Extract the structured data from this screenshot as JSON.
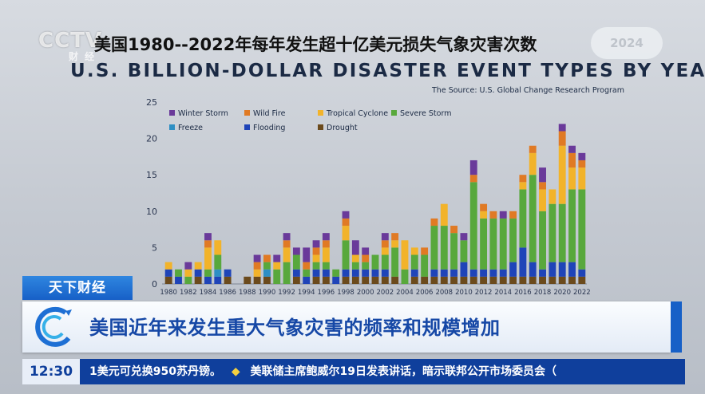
{
  "broadcast": {
    "logo_text": "CCTV",
    "channel_text": "财经",
    "pill_text": "2024",
    "section_label": "天下财经",
    "headline": "美国近年来发生重大气象灾害的频率和规模增加",
    "clock": "12:30",
    "ticker_items": [
      "1美元可兑换950苏丹镑。",
      "美联储主席鲍威尔19日发表讲话，暗示联邦公开市场委员会（"
    ]
  },
  "chart_data": {
    "type": "bar",
    "stacked": true,
    "title_cn": "美国1980--2022年每年发生超十亿美元损失气象灾害次数",
    "title": "U.S. BILLION-DOLLAR DISASTER EVENT TYPES BY YEAR",
    "source": "The Source: U.S. Global Change Research Program",
    "ylim": [
      0,
      25
    ],
    "yticks": [
      "0",
      "5",
      "10",
      "15",
      "20",
      "25"
    ],
    "xticks": [
      "1980",
      "1982",
      "1984",
      "1986",
      "1988",
      "1990",
      "1992",
      "1994",
      "1996",
      "1998",
      "2000",
      "2002",
      "2004",
      "2006",
      "2008",
      "2010",
      "2012",
      "2014",
      "2016",
      "2018",
      "2020",
      "2022"
    ],
    "categories": [
      "1980",
      "1981",
      "1982",
      "1983",
      "1984",
      "1985",
      "1986",
      "1987",
      "1988",
      "1989",
      "1990",
      "1991",
      "1992",
      "1993",
      "1994",
      "1995",
      "1996",
      "1997",
      "1998",
      "1999",
      "2000",
      "2001",
      "2002",
      "2003",
      "2004",
      "2005",
      "2006",
      "2007",
      "2008",
      "2009",
      "2010",
      "2011",
      "2012",
      "2013",
      "2014",
      "2015",
      "2016",
      "2017",
      "2018",
      "2019",
      "2020",
      "2021",
      "2022"
    ],
    "legend_position": "top-left",
    "series": [
      {
        "name": "Drought",
        "color": "#6b4a1c",
        "values": [
          1,
          0,
          0,
          1,
          0,
          0,
          1,
          0,
          1,
          1,
          1,
          0,
          0,
          1,
          0,
          1,
          1,
          0,
          1,
          1,
          1,
          1,
          1,
          1,
          0,
          1,
          1,
          1,
          1,
          1,
          1,
          1,
          1,
          1,
          1,
          1,
          1,
          1,
          1,
          1,
          1,
          1,
          1
        ]
      },
      {
        "name": "Flooding",
        "color": "#1f44b8",
        "values": [
          1,
          1,
          0,
          1,
          1,
          1,
          1,
          0,
          0,
          0,
          0,
          0,
          0,
          1,
          1,
          1,
          1,
          1,
          1,
          1,
          1,
          1,
          1,
          0,
          0,
          1,
          0,
          1,
          1,
          1,
          2,
          1,
          1,
          1,
          1,
          2,
          4,
          2,
          1,
          2,
          2,
          2,
          1
        ]
      },
      {
        "name": "Freeze",
        "color": "#2e8fc4",
        "values": [
          0,
          0,
          0,
          0,
          0,
          1,
          0,
          0,
          0,
          0,
          1,
          0,
          0,
          0,
          0,
          0,
          0,
          0,
          0,
          0,
          0,
          0,
          0,
          0,
          0,
          0,
          0,
          0,
          0,
          0,
          0,
          0,
          0,
          0,
          0,
          0,
          0,
          0,
          0,
          0,
          0,
          0,
          0
        ]
      },
      {
        "name": "Severe Storm",
        "color": "#58a83c",
        "values": [
          0,
          1,
          1,
          0,
          1,
          2,
          0,
          0,
          0,
          0,
          1,
          2,
          3,
          2,
          1,
          1,
          1,
          1,
          4,
          1,
          1,
          2,
          2,
          4,
          2,
          2,
          3,
          6,
          6,
          5,
          3,
          12,
          7,
          7,
          7,
          6,
          8,
          12,
          8,
          8,
          8,
          10,
          11
        ]
      },
      {
        "name": "Tropical Cyclone",
        "color": "#f2b32a",
        "values": [
          1,
          0,
          1,
          1,
          3,
          2,
          0,
          0,
          0,
          1,
          0,
          1,
          2,
          0,
          0,
          1,
          2,
          0,
          2,
          1,
          0,
          0,
          1,
          1,
          4,
          1,
          0,
          0,
          3,
          0,
          0,
          0,
          1,
          0,
          0,
          0,
          1,
          3,
          3,
          2,
          8,
          3,
          3
        ]
      },
      {
        "name": "Wild Fire",
        "color": "#e07a24",
        "values": [
          0,
          0,
          0,
          0,
          1,
          0,
          0,
          0,
          0,
          1,
          1,
          0,
          1,
          0,
          1,
          1,
          1,
          0,
          1,
          0,
          1,
          0,
          1,
          1,
          0,
          0,
          1,
          1,
          0,
          1,
          0,
          1,
          1,
          1,
          0,
          1,
          1,
          1,
          1,
          0,
          2,
          2,
          1
        ]
      },
      {
        "name": "Winter Storm",
        "color": "#6a3a9a",
        "values": [
          0,
          0,
          1,
          0,
          1,
          0,
          0,
          0,
          0,
          1,
          0,
          1,
          1,
          1,
          2,
          1,
          1,
          0,
          1,
          2,
          1,
          0,
          1,
          0,
          0,
          0,
          0,
          0,
          0,
          0,
          1,
          2,
          0,
          0,
          1,
          0,
          0,
          0,
          2,
          0,
          1,
          1,
          1
        ]
      }
    ],
    "legend": [
      "Winter Storm",
      "Wild Fire",
      "Tropical Cyclone",
      "Severe Storm",
      "Freeze",
      "Flooding",
      "Drought"
    ],
    "grid": false
  }
}
